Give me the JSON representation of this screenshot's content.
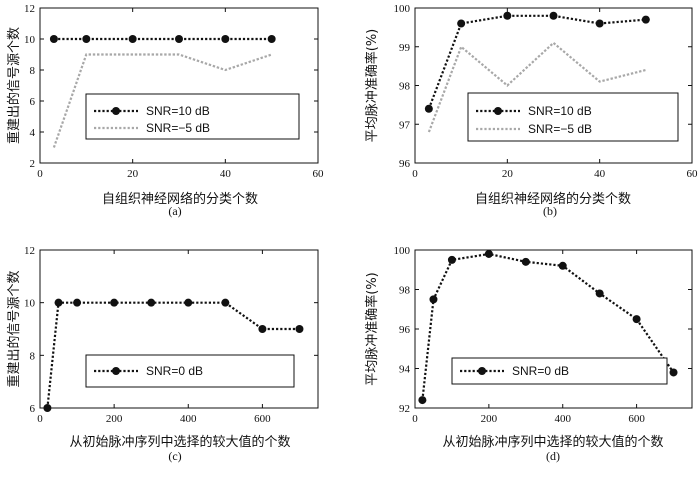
{
  "chart_data": [
    {
      "type": "line",
      "panel_label": "(a)",
      "xlabel": "自组织神经网络的分类个数",
      "ylabel": "重建出的信号源个数",
      "xlim": [
        0,
        60
      ],
      "ylim": [
        2,
        12
      ],
      "xticks": [
        "0",
        "20",
        "40",
        "60"
      ],
      "yticks": [
        "2",
        "4",
        "6",
        "8",
        "10",
        "12"
      ],
      "legend": "center",
      "series": [
        {
          "name": "SNR=10 dB",
          "color": "#111111",
          "style": "dotted-marker",
          "x": [
            3,
            10,
            20,
            30,
            40,
            50
          ],
          "y": [
            10,
            10,
            10,
            10,
            10,
            10
          ]
        },
        {
          "name": "SNR=−5 dB",
          "color": "#a8a8a8",
          "style": "dotted",
          "x": [
            3,
            10,
            20,
            30,
            40,
            50
          ],
          "y": [
            3,
            9,
            9,
            9,
            8,
            9
          ]
        }
      ]
    },
    {
      "type": "line",
      "panel_label": "(b)",
      "xlabel": "自组织神经网络的分类个数",
      "ylabel": "平均脉冲准确率(%)",
      "xlim": [
        0,
        60
      ],
      "ylim": [
        96,
        100
      ],
      "xticks": [
        "0",
        "20",
        "40",
        "60"
      ],
      "yticks": [
        "96",
        "97",
        "98",
        "99",
        "100"
      ],
      "legend": "center",
      "series": [
        {
          "name": "SNR=10 dB",
          "color": "#111111",
          "style": "dotted-marker",
          "x": [
            3,
            10,
            20,
            30,
            40,
            50
          ],
          "y": [
            97.4,
            99.6,
            99.8,
            99.8,
            99.6,
            99.7
          ]
        },
        {
          "name": "SNR=−5 dB",
          "color": "#a8a8a8",
          "style": "dotted",
          "x": [
            3,
            10,
            20,
            30,
            40,
            50
          ],
          "y": [
            96.8,
            99.0,
            98.0,
            99.1,
            98.1,
            98.4
          ]
        }
      ]
    },
    {
      "type": "line",
      "panel_label": "(c)",
      "xlabel": "从初始脉冲序列中选择的较大值的个数",
      "ylabel": "重建出的信号源个数",
      "xlim": [
        0,
        750
      ],
      "ylim": [
        6,
        12
      ],
      "xticks": [
        "0",
        "200",
        "400",
        "600"
      ],
      "yticks": [
        "6",
        "8",
        "10",
        "12"
      ],
      "legend": "center",
      "series": [
        {
          "name": "SNR=0 dB",
          "color": "#111111",
          "style": "dotted-marker",
          "x": [
            20,
            50,
            100,
            200,
            300,
            400,
            500,
            600,
            700
          ],
          "y": [
            6,
            10,
            10,
            10,
            10,
            10,
            10,
            9,
            9
          ]
        }
      ]
    },
    {
      "type": "line",
      "panel_label": "(d)",
      "xlabel": "从初始脉冲序列中选择的较大值的个数",
      "ylabel": "平均脉冲准确率(%)",
      "xlim": [
        0,
        750
      ],
      "ylim": [
        92,
        100
      ],
      "xticks": [
        "0",
        "200",
        "400",
        "600"
      ],
      "yticks": [
        "92",
        "94",
        "96",
        "98",
        "100"
      ],
      "legend": "center",
      "series": [
        {
          "name": "SNR=0 dB",
          "color": "#111111",
          "style": "dotted-marker",
          "x": [
            20,
            50,
            100,
            200,
            300,
            400,
            500,
            600,
            700
          ],
          "y": [
            92.4,
            97.5,
            99.5,
            99.8,
            99.4,
            99.2,
            97.8,
            96.5,
            93.8
          ]
        }
      ]
    }
  ]
}
